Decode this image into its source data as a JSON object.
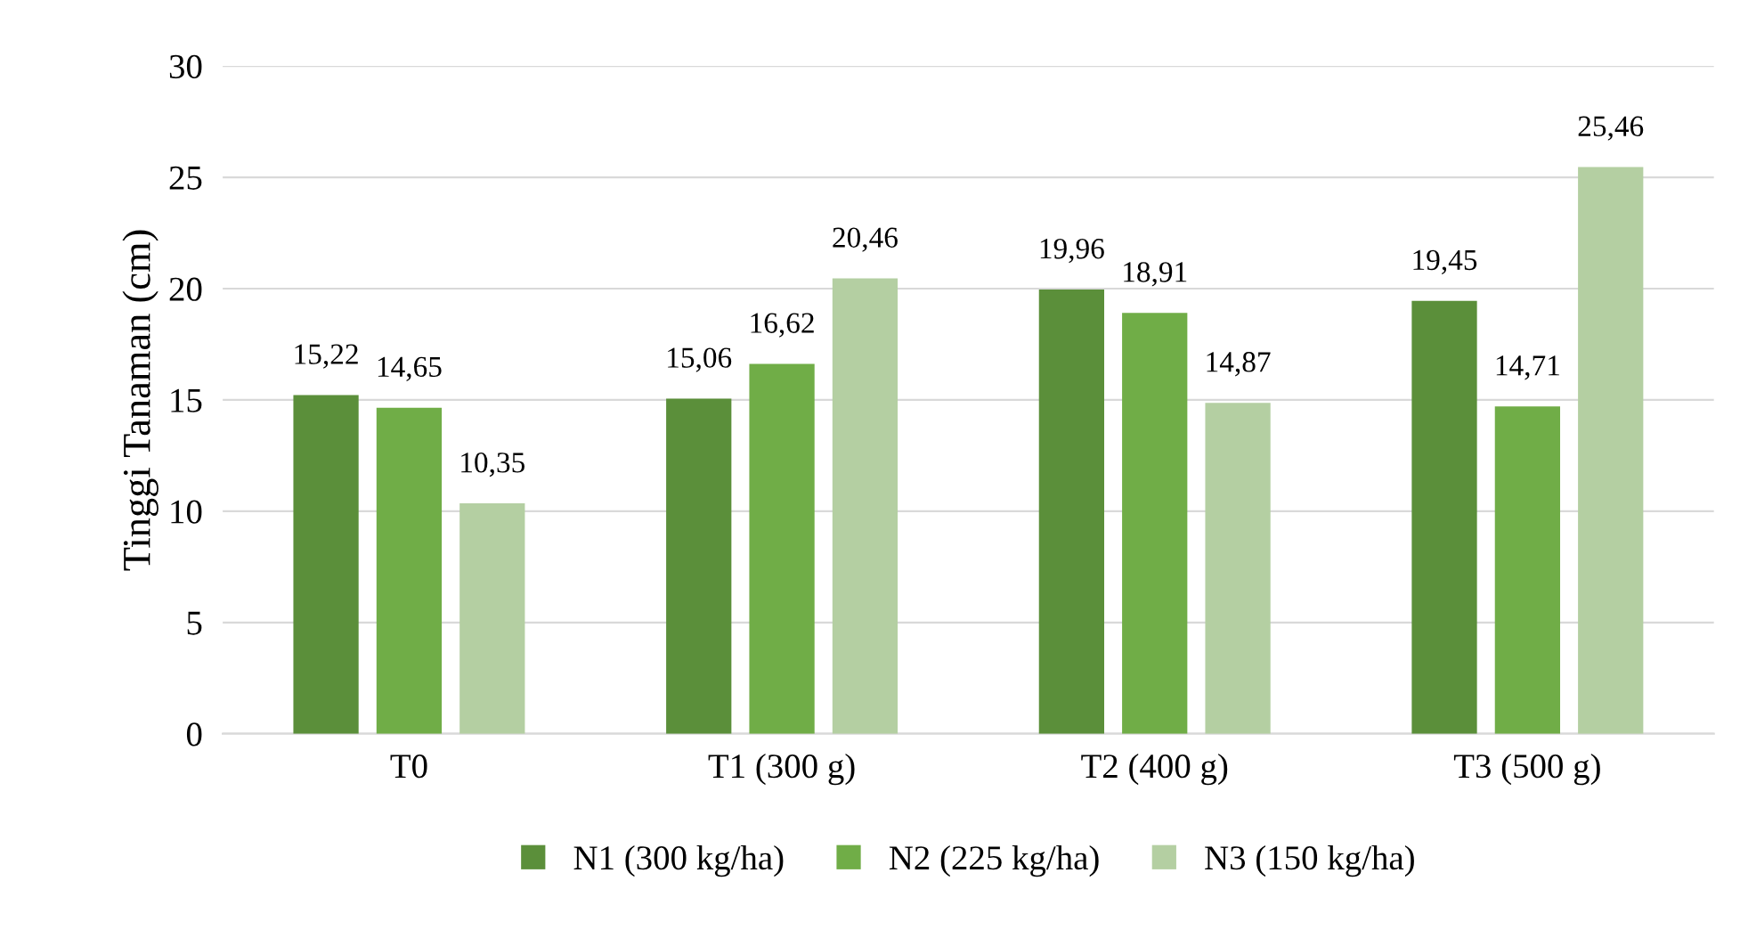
{
  "chart_data": {
    "type": "bar",
    "ylabel": "Tinggi Tanaman (cm)",
    "categories": [
      "T0",
      "T1 (300 g)",
      "T2 (400 g)",
      "T3 (500 g)"
    ],
    "series": [
      {
        "name": "N1 (300 kg/ha)",
        "color": "#5b8f3a",
        "values": [
          15.22,
          15.06,
          19.96,
          19.45
        ],
        "value_labels": [
          "15,22",
          "15,06",
          "19,96",
          "19,45"
        ]
      },
      {
        "name": "N2 (225 kg/ha)",
        "color": "#70ad47",
        "values": [
          14.65,
          16.62,
          18.91,
          14.71
        ],
        "value_labels": [
          "14,65",
          "16,62",
          "18,91",
          "14,71"
        ]
      },
      {
        "name": "N3 (150 kg/ha)",
        "color": "#b4cfa2",
        "values": [
          10.35,
          20.46,
          14.87,
          25.46
        ],
        "value_labels": [
          "10,35",
          "20,46",
          "14,87",
          "25,46"
        ]
      }
    ],
    "ylim": [
      0,
      30
    ],
    "yticks": [
      0,
      5,
      10,
      15,
      20,
      25,
      30
    ],
    "grid": "y",
    "legend": "bottom"
  }
}
